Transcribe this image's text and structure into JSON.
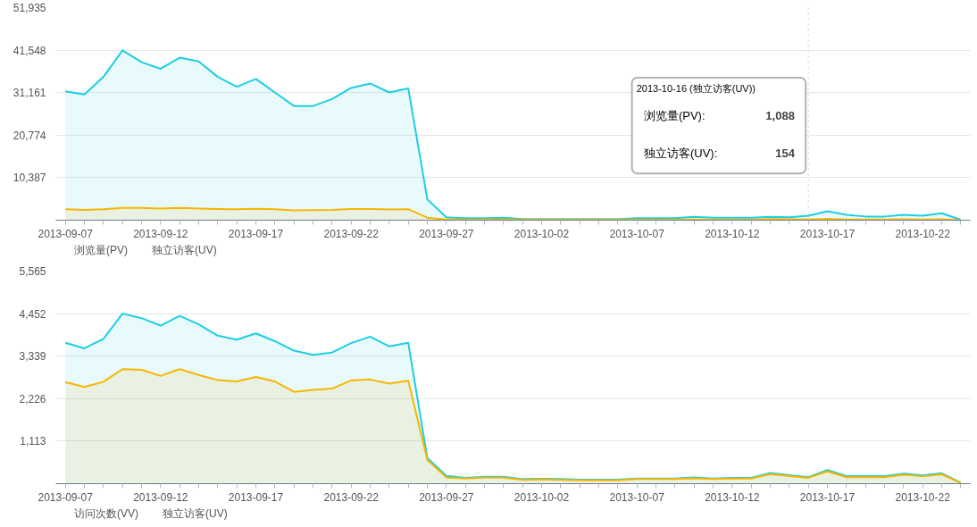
{
  "chart_data": [
    {
      "type": "area",
      "x": [
        "2013-09-07",
        "2013-09-08",
        "2013-09-09",
        "2013-09-10",
        "2013-09-11",
        "2013-09-12",
        "2013-09-13",
        "2013-09-14",
        "2013-09-15",
        "2013-09-16",
        "2013-09-17",
        "2013-09-18",
        "2013-09-19",
        "2013-09-20",
        "2013-09-21",
        "2013-09-22",
        "2013-09-23",
        "2013-09-24",
        "2013-09-25",
        "2013-09-26",
        "2013-09-27",
        "2013-09-28",
        "2013-09-29",
        "2013-09-30",
        "2013-10-01",
        "2013-10-02",
        "2013-10-03",
        "2013-10-04",
        "2013-10-05",
        "2013-10-06",
        "2013-10-07",
        "2013-10-08",
        "2013-10-09",
        "2013-10-10",
        "2013-10-11",
        "2013-10-12",
        "2013-10-13",
        "2013-10-14",
        "2013-10-15",
        "2013-10-16",
        "2013-10-17",
        "2013-10-18",
        "2013-10-19",
        "2013-10-20",
        "2013-10-21",
        "2013-10-22",
        "2013-10-23",
        "2013-10-24"
      ],
      "series": [
        {
          "name": "浏览量(PV)",
          "color": "#1ccfdf",
          "values": [
            31500,
            30700,
            35000,
            41500,
            38600,
            37000,
            39700,
            38800,
            35000,
            32600,
            34500,
            31200,
            27900,
            27900,
            29600,
            32300,
            33400,
            31200,
            32200,
            5100,
            700,
            500,
            500,
            600,
            300,
            300,
            300,
            300,
            300,
            300,
            500,
            500,
            500,
            800,
            600,
            600,
            600,
            800,
            700,
            1088,
            2200,
            1300,
            900,
            900,
            1300,
            1100,
            1700,
            100
          ]
        },
        {
          "name": "独立访客(UV)",
          "color": "#f8b500",
          "values": [
            2659,
            2532,
            2668,
            2999,
            2982,
            2821,
            2999,
            2846,
            2710,
            2676,
            2795,
            2676,
            2404,
            2455,
            2489,
            2702,
            2727,
            2617,
            2693,
            620,
            161,
            136,
            160,
            160,
            100,
            110,
            100,
            90,
            90,
            90,
            120,
            120,
            120,
            140,
            120,
            135,
            135,
            250,
            200,
            154,
            320,
            170,
            170,
            170,
            235,
            190,
            245,
            20
          ]
        }
      ],
      "xlim": [
        "2013-09-06T12:00",
        "2013-10-24T12:00"
      ],
      "xticks": [
        "2013-09-07",
        {
          "value": "2013-09-08",
          "label": null
        },
        {
          "value": "2013-09-09",
          "label": null
        },
        {
          "value": "2013-09-10",
          "label": null
        },
        {
          "value": "2013-09-11",
          "label": null
        },
        "2013-09-12",
        {
          "value": "2013-09-13",
          "label": null
        },
        {
          "value": "2013-09-14",
          "label": null
        },
        {
          "value": "2013-09-15",
          "label": null
        },
        {
          "value": "2013-09-16",
          "label": null
        },
        "2013-09-17",
        {
          "value": "2013-09-18",
          "label": null
        },
        {
          "value": "2013-09-19",
          "label": null
        },
        {
          "value": "2013-09-20",
          "label": null
        },
        {
          "value": "2013-09-21",
          "label": null
        },
        "2013-09-22",
        {
          "value": "2013-09-23",
          "label": null
        },
        {
          "value": "2013-09-24",
          "label": null
        },
        {
          "value": "2013-09-25",
          "label": null
        },
        {
          "value": "2013-09-26",
          "label": null
        },
        "2013-09-27",
        {
          "value": "2013-09-28",
          "label": null
        },
        {
          "value": "2013-09-29",
          "label": null
        },
        {
          "value": "2013-09-30",
          "label": null
        },
        {
          "value": "2013-10-01",
          "label": null
        },
        "2013-10-02",
        {
          "value": "2013-10-03",
          "label": null
        },
        {
          "value": "2013-10-04",
          "label": null
        },
        {
          "value": "2013-10-05",
          "label": null
        },
        {
          "value": "2013-10-06",
          "label": null
        },
        "2013-10-07",
        {
          "value": "2013-10-08",
          "label": null
        },
        {
          "value": "2013-10-09",
          "label": null
        },
        {
          "value": "2013-10-10",
          "label": null
        },
        {
          "value": "2013-10-11",
          "label": null
        },
        "2013-10-12",
        {
          "value": "2013-10-13",
          "label": null
        },
        {
          "value": "2013-10-14",
          "label": null
        },
        {
          "value": "2013-10-15",
          "label": null
        },
        {
          "value": "2013-10-16",
          "label": null
        },
        "2013-10-17",
        {
          "value": "2013-10-18",
          "label": null
        },
        {
          "value": "2013-10-19",
          "label": null
        },
        {
          "value": "2013-10-20",
          "label": null
        },
        {
          "value": "2013-10-21",
          "label": null
        },
        "2013-10-22",
        {
          "value": "2013-10-23",
          "label": null
        },
        {
          "value": "2013-10-24",
          "label": null
        }
      ],
      "ylim": [
        0,
        51935
      ],
      "yticks": [
        {
          "value": 10387,
          "label": "10,387"
        },
        {
          "value": 20774,
          "label": "20,774"
        },
        {
          "value": 31161,
          "label": "31,161"
        },
        {
          "value": 41548,
          "label": "41,548"
        },
        {
          "value": 51935,
          "label": "51,935"
        }
      ],
      "ref_lines": [
        {
          "axis": "x",
          "value": "2013-10-16",
          "color": "#b5e0a0",
          "line_style": "dotted"
        }
      ],
      "annotations": [
        "2013-10-16 (独立访客(UV))",
        "浏览量(PV):",
        "1,088",
        "独立访客(UV):",
        "154"
      ],
      "grid": "y",
      "legend": "bottom"
    },
    {
      "type": "area",
      "x": [
        "2013-09-07",
        "2013-09-08",
        "2013-09-09",
        "2013-09-10",
        "2013-09-11",
        "2013-09-12",
        "2013-09-13",
        "2013-09-14",
        "2013-09-15",
        "2013-09-16",
        "2013-09-17",
        "2013-09-18",
        "2013-09-19",
        "2013-09-20",
        "2013-09-21",
        "2013-09-22",
        "2013-09-23",
        "2013-09-24",
        "2013-09-25",
        "2013-09-26",
        "2013-09-27",
        "2013-09-28",
        "2013-09-29",
        "2013-09-30",
        "2013-10-01",
        "2013-10-02",
        "2013-10-03",
        "2013-10-04",
        "2013-10-05",
        "2013-10-06",
        "2013-10-07",
        "2013-10-08",
        "2013-10-09",
        "2013-10-10",
        "2013-10-11",
        "2013-10-12",
        "2013-10-13",
        "2013-10-14",
        "2013-10-15",
        "2013-10-16",
        "2013-10-17",
        "2013-10-18",
        "2013-10-19",
        "2013-10-20",
        "2013-10-21",
        "2013-10-22",
        "2013-10-23",
        "2013-10-24"
      ],
      "series": [
        {
          "name": "访问次数(VV)",
          "color": "#1ccfdf",
          "values": [
            3687,
            3543,
            3789,
            4452,
            4333,
            4138,
            4392,
            4172,
            3874,
            3772,
            3934,
            3730,
            3483,
            3373,
            3432,
            3679,
            3849,
            3594,
            3687,
            671,
            204,
            153,
            180,
            180,
            120,
            128,
            120,
            103,
            103,
            103,
            137,
            137,
            137,
            163,
            137,
            154,
            154,
            282,
            223,
            171,
            360,
            197,
            197,
            197,
            265,
            214,
            274,
            26
          ]
        },
        {
          "name": "独立访客(UV)",
          "color": "#f8b500",
          "values": [
            2659,
            2532,
            2668,
            2999,
            2982,
            2821,
            2999,
            2846,
            2710,
            2676,
            2795,
            2676,
            2404,
            2455,
            2489,
            2702,
            2727,
            2617,
            2693,
            620,
            161,
            136,
            160,
            160,
            100,
            110,
            100,
            90,
            90,
            90,
            120,
            120,
            120,
            140,
            120,
            135,
            135,
            250,
            200,
            154,
            320,
            170,
            170,
            170,
            235,
            190,
            245,
            20
          ]
        }
      ],
      "xlim": [
        "2013-09-06T12:00",
        "2013-10-24T12:00"
      ],
      "xticks": [
        "2013-09-07",
        {
          "value": "2013-09-08",
          "label": null
        },
        {
          "value": "2013-09-09",
          "label": null
        },
        {
          "value": "2013-09-10",
          "label": null
        },
        {
          "value": "2013-09-11",
          "label": null
        },
        "2013-09-12",
        {
          "value": "2013-09-13",
          "label": null
        },
        {
          "value": "2013-09-14",
          "label": null
        },
        {
          "value": "2013-09-15",
          "label": null
        },
        {
          "value": "2013-09-16",
          "label": null
        },
        "2013-09-17",
        {
          "value": "2013-09-18",
          "label": null
        },
        {
          "value": "2013-09-19",
          "label": null
        },
        {
          "value": "2013-09-20",
          "label": null
        },
        {
          "value": "2013-09-21",
          "label": null
        },
        "2013-09-22",
        {
          "value": "2013-09-23",
          "label": null
        },
        {
          "value": "2013-09-24",
          "label": null
        },
        {
          "value": "2013-09-25",
          "label": null
        },
        {
          "value": "2013-09-26",
          "label": null
        },
        "2013-09-27",
        {
          "value": "2013-09-28",
          "label": null
        },
        {
          "value": "2013-09-29",
          "label": null
        },
        {
          "value": "2013-09-30",
          "label": null
        },
        {
          "value": "2013-10-01",
          "label": null
        },
        "2013-10-02",
        {
          "value": "2013-10-03",
          "label": null
        },
        {
          "value": "2013-10-04",
          "label": null
        },
        {
          "value": "2013-10-05",
          "label": null
        },
        {
          "value": "2013-10-06",
          "label": null
        },
        "2013-10-07",
        {
          "value": "2013-10-08",
          "label": null
        },
        {
          "value": "2013-10-09",
          "label": null
        },
        {
          "value": "2013-10-10",
          "label": null
        },
        {
          "value": "2013-10-11",
          "label": null
        },
        "2013-10-12",
        {
          "value": "2013-10-13",
          "label": null
        },
        {
          "value": "2013-10-14",
          "label": null
        },
        {
          "value": "2013-10-15",
          "label": null
        },
        {
          "value": "2013-10-16",
          "label": null
        },
        "2013-10-17",
        {
          "value": "2013-10-18",
          "label": null
        },
        {
          "value": "2013-10-19",
          "label": null
        },
        {
          "value": "2013-10-20",
          "label": null
        },
        {
          "value": "2013-10-21",
          "label": null
        },
        "2013-10-22",
        {
          "value": "2013-10-23",
          "label": null
        },
        {
          "value": "2013-10-24",
          "label": null
        }
      ],
      "ylim": [
        0,
        5565
      ],
      "yticks": [
        {
          "value": 1113,
          "label": "1,113"
        },
        {
          "value": 2226,
          "label": "2,226"
        },
        {
          "value": 3339,
          "label": "3,339"
        },
        {
          "value": 4452,
          "label": "4,452"
        },
        {
          "value": 5565,
          "label": "5,565"
        }
      ],
      "grid": "y",
      "legend": "bottom"
    }
  ]
}
